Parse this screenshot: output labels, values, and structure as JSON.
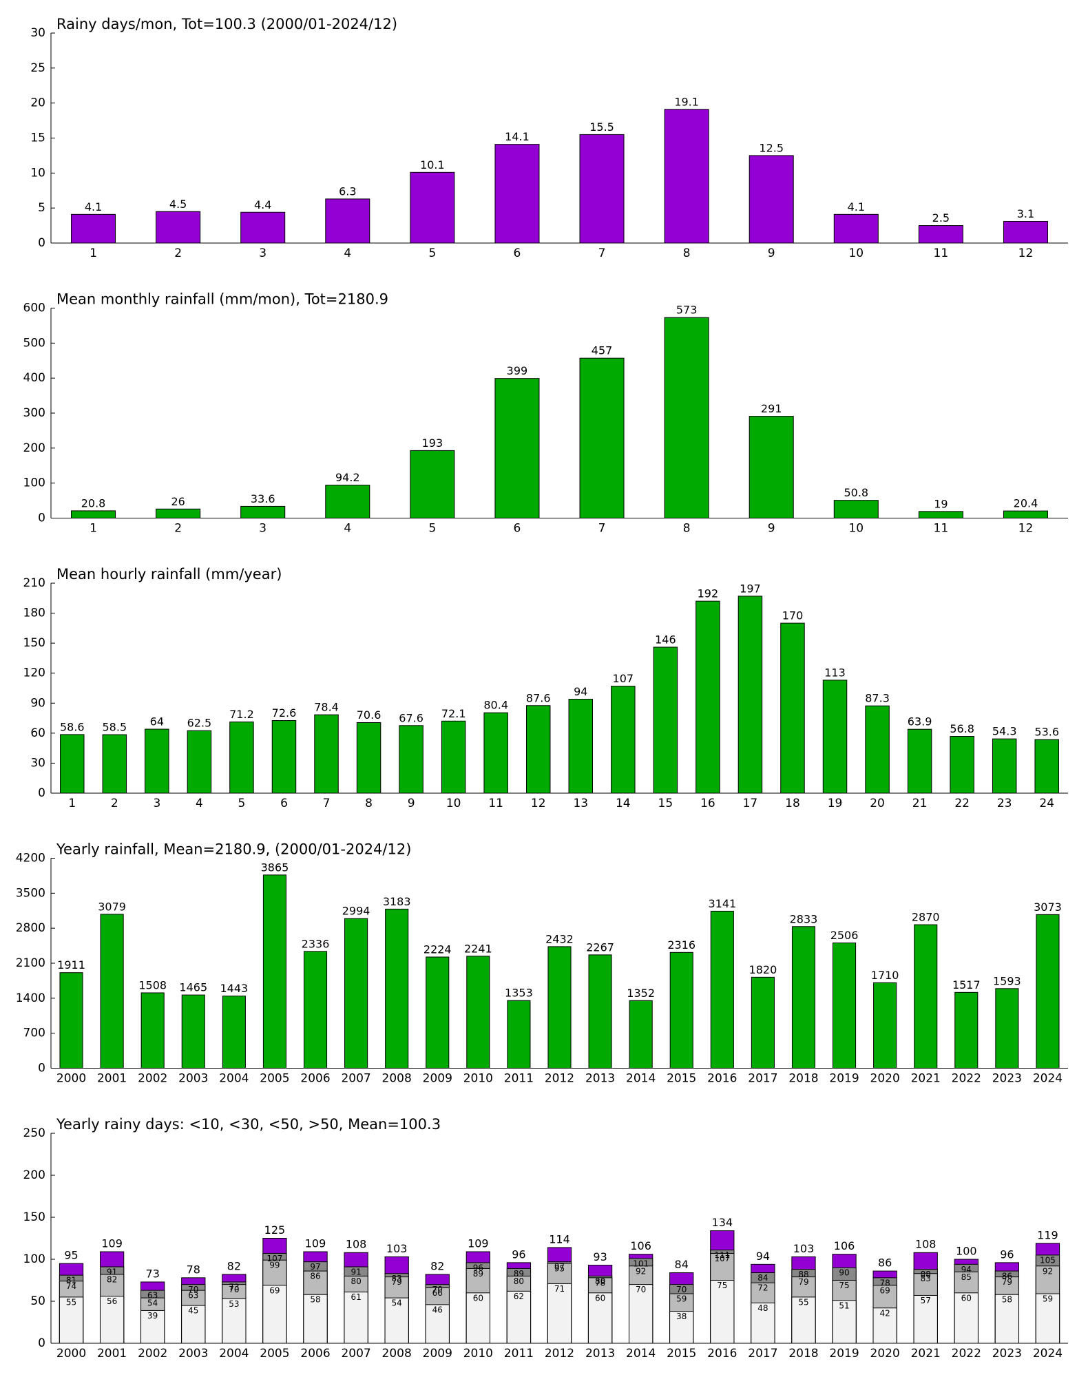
{
  "chart_data": [
    {
      "type": "bar",
      "title": "Rainy days/mon, Tot=100.3 (2000/01-2024/12)",
      "categories": [
        "1",
        "2",
        "3",
        "4",
        "5",
        "6",
        "7",
        "8",
        "9",
        "10",
        "11",
        "12"
      ],
      "values": [
        4.1,
        4.5,
        4.4,
        6.3,
        10.1,
        14.1,
        15.5,
        19.1,
        12.5,
        4.1,
        2.5,
        3.1
      ],
      "color": "#9400d3",
      "ylim": [
        0,
        30
      ],
      "yticks": [
        0,
        5,
        10,
        15,
        20,
        25,
        30
      ]
    },
    {
      "type": "bar",
      "title": "Mean monthly rainfall (mm/mon), Tot=2180.9",
      "categories": [
        "1",
        "2",
        "3",
        "4",
        "5",
        "6",
        "7",
        "8",
        "9",
        "10",
        "11",
        "12"
      ],
      "values": [
        20.8,
        26,
        33.6,
        94.2,
        193,
        399,
        457,
        573,
        291,
        50.8,
        19,
        20.4
      ],
      "color": "#00aa00",
      "ylim": [
        0,
        600
      ],
      "yticks": [
        0,
        100,
        200,
        300,
        400,
        500,
        600
      ]
    },
    {
      "type": "bar",
      "title": "Mean hourly rainfall (mm/year)",
      "categories": [
        "1",
        "2",
        "3",
        "4",
        "5",
        "6",
        "7",
        "8",
        "9",
        "10",
        "11",
        "12",
        "13",
        "14",
        "15",
        "16",
        "17",
        "18",
        "19",
        "20",
        "21",
        "22",
        "23",
        "24"
      ],
      "values": [
        58.6,
        58.5,
        64,
        62.5,
        71.2,
        72.6,
        78.4,
        70.6,
        67.6,
        72.1,
        80.4,
        87.6,
        94,
        107,
        146,
        192,
        197,
        170,
        113,
        87.3,
        63.9,
        56.8,
        54.3,
        53.6
      ],
      "color": "#00aa00",
      "ylim": [
        0,
        210
      ],
      "yticks": [
        0,
        30,
        60,
        90,
        120,
        150,
        180,
        210
      ]
    },
    {
      "type": "bar",
      "title": "Yearly rainfall, Mean=2180.9, (2000/01-2024/12)",
      "categories": [
        "2000",
        "2001",
        "2002",
        "2003",
        "2004",
        "2005",
        "2006",
        "2007",
        "2008",
        "2009",
        "2010",
        "2011",
        "2012",
        "2013",
        "2014",
        "2015",
        "2016",
        "2017",
        "2018",
        "2019",
        "2020",
        "2021",
        "2022",
        "2023",
        "2024"
      ],
      "values": [
        1911,
        3079,
        1508,
        1465,
        1443,
        3865,
        2336,
        2994,
        3183,
        2224,
        2241,
        1353,
        2432,
        2267,
        1352,
        2316,
        3141,
        1820,
        2833,
        2506,
        1710,
        2870,
        1517,
        1593,
        3073
      ],
      "color": "#00aa00",
      "ylim": [
        0,
        4200
      ],
      "yticks": [
        0,
        700,
        1400,
        2100,
        2800,
        3500,
        4200
      ]
    },
    {
      "type": "overlaid_bar",
      "title": "Yearly rainy days: <10, <30, <50, >50, Mean=100.3",
      "categories": [
        "2000",
        "2001",
        "2002",
        "2003",
        "2004",
        "2005",
        "2006",
        "2007",
        "2008",
        "2009",
        "2010",
        "2011",
        "2012",
        "2013",
        "2014",
        "2015",
        "2016",
        "2017",
        "2018",
        "2019",
        "2020",
        "2021",
        "2022",
        "2023",
        "2024"
      ],
      "series": [
        {
          "color": "#9400d3",
          "values": [
            95,
            109,
            73,
            78,
            82,
            125,
            109,
            108,
            103,
            82,
            109,
            96,
            114,
            93,
            106,
            84,
            134,
            94,
            103,
            106,
            86,
            108,
            100,
            96,
            119
          ]
        },
        {
          "color": "#888888",
          "values": [
            81,
            91,
            63,
            70,
            73,
            107,
            97,
            91,
            83,
            70,
            96,
            89,
            97,
            80,
            101,
            70,
            111,
            84,
            88,
            90,
            78,
            88,
            94,
            86,
            105
          ]
        },
        {
          "color": "#bbbbbb",
          "values": [
            74,
            82,
            54,
            63,
            70,
            99,
            86,
            80,
            79,
            66,
            89,
            80,
            95,
            78,
            92,
            59,
            107,
            72,
            79,
            75,
            69,
            83,
            85,
            79,
            92
          ]
        },
        {
          "color": "#f2f2f2",
          "values": [
            55,
            56,
            39,
            45,
            53,
            69,
            58,
            61,
            54,
            46,
            60,
            62,
            71,
            60,
            70,
            38,
            75,
            48,
            55,
            51,
            42,
            57,
            60,
            58,
            59
          ]
        }
      ],
      "ylim": [
        0,
        250
      ],
      "yticks": [
        0,
        50,
        100,
        150,
        200,
        250
      ]
    }
  ]
}
